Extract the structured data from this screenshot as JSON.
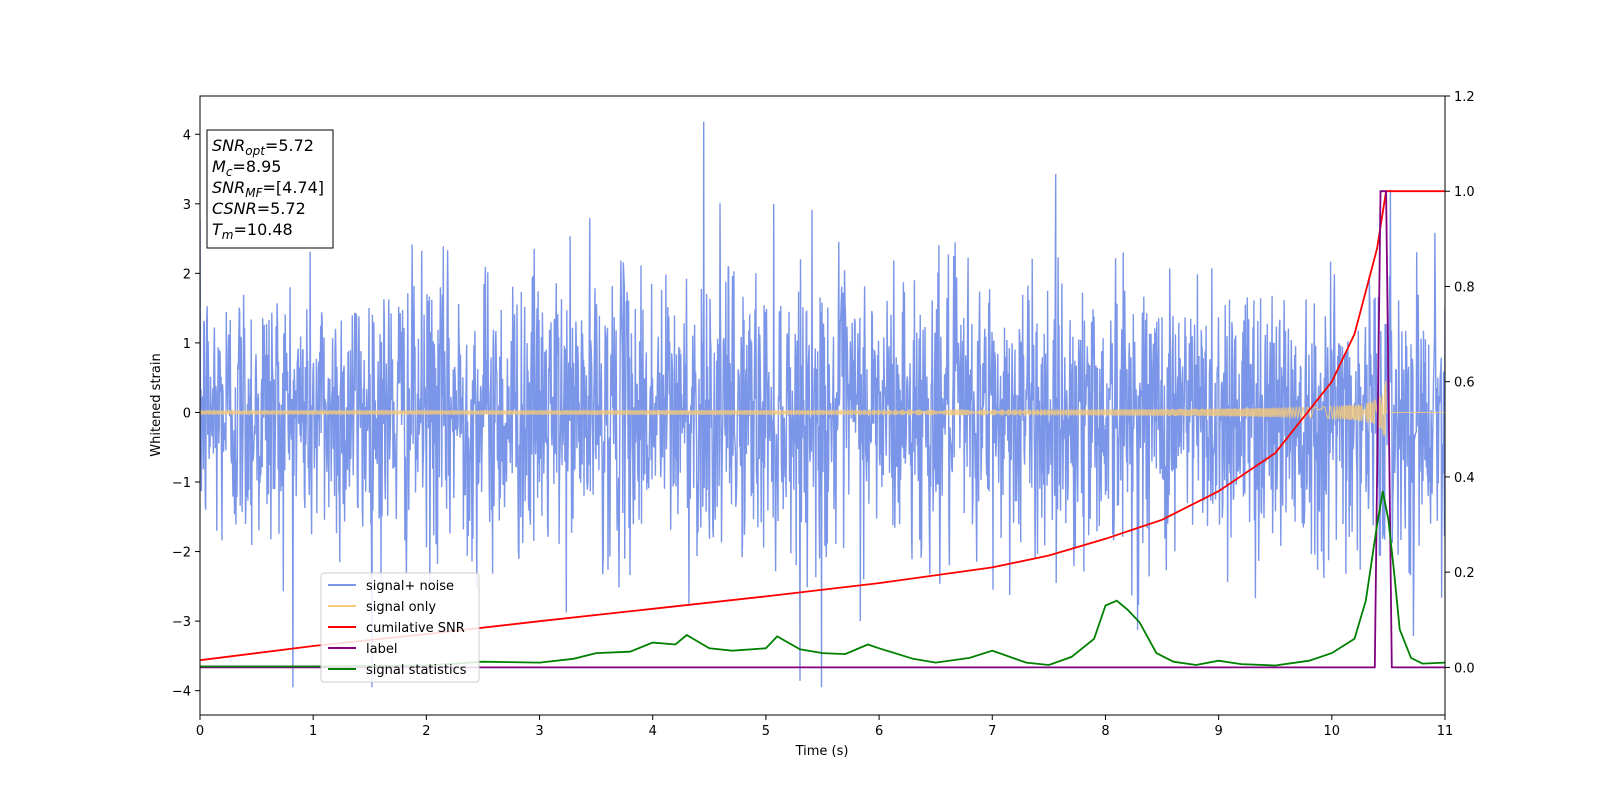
{
  "chart_data": {
    "type": "line",
    "title": "",
    "xlabel": "Time (s)",
    "ylabel": "Whitened strain",
    "xlim": [
      0,
      11
    ],
    "ylim": [
      -4.35,
      4.55
    ],
    "y2lim": [
      -0.1,
      1.2
    ],
    "x_ticks": [
      0,
      1,
      2,
      3,
      4,
      5,
      6,
      7,
      8,
      9,
      10,
      11
    ],
    "y_ticks": [
      -4,
      -3,
      -2,
      -1,
      0,
      1,
      2,
      3,
      4
    ],
    "y2_ticks": [
      "0.0",
      "0.2",
      "0.4",
      "0.6",
      "0.8",
      "1.0",
      "1.2"
    ],
    "grid": false,
    "legend_position": "lower-left",
    "info_box": {
      "lines": [
        {
          "base": "SNR",
          "sub": "opt",
          "value": "=5.72"
        },
        {
          "base": "M",
          "sub": "c",
          "value": "=8.95"
        },
        {
          "base": "SNR",
          "sub": "MF",
          "value": "=[4.74]"
        },
        {
          "base": "CSNR",
          "sub": "",
          "value": "=5.72"
        },
        {
          "base": "T",
          "sub": "m",
          "value": "=10.48"
        }
      ]
    },
    "series": [
      {
        "name": "signal+ noise",
        "color": "#7b96e8",
        "axis": "left",
        "kind": "noise",
        "envelope_std": 1.0,
        "peak_max": 4.18,
        "peak_min": -3.95
      },
      {
        "name": "signal only",
        "color": "#f5c97a",
        "axis": "left",
        "kind": "chirp",
        "amplitude_start": 0.02,
        "amplitude_end": 0.5,
        "merger_time": 10.48
      },
      {
        "name": "cumilative SNR",
        "color": "#ff0000",
        "axis": "right",
        "x": [
          0,
          1,
          2,
          3,
          4,
          5,
          6,
          7,
          7.5,
          8,
          8.5,
          9,
          9.5,
          10,
          10.2,
          10.4,
          10.48,
          10.5,
          11
        ],
        "values": [
          0.015,
          0.045,
          0.07,
          0.097,
          0.123,
          0.149,
          0.177,
          0.21,
          0.235,
          0.27,
          0.31,
          0.37,
          0.45,
          0.6,
          0.7,
          0.88,
          1.0,
          1.0,
          1.0
        ]
      },
      {
        "name": "label",
        "color": "#800080",
        "axis": "right",
        "x": [
          0,
          10.38,
          10.43,
          10.48,
          10.53,
          11
        ],
        "values": [
          0,
          0,
          1.0,
          1.0,
          0,
          0
        ]
      },
      {
        "name": "signal statistics",
        "color": "#008000",
        "axis": "right",
        "x": [
          0,
          1,
          2,
          2.5,
          3,
          3.3,
          3.5,
          3.8,
          4,
          4.2,
          4.3,
          4.5,
          4.7,
          5,
          5.1,
          5.3,
          5.5,
          5.7,
          5.9,
          6,
          6.3,
          6.5,
          6.8,
          7,
          7.3,
          7.5,
          7.7,
          7.9,
          8.0,
          8.1,
          8.2,
          8.3,
          8.45,
          8.6,
          8.8,
          9.0,
          9.2,
          9.5,
          9.8,
          10.0,
          10.2,
          10.3,
          10.4,
          10.45,
          10.5,
          10.55,
          10.6,
          10.7,
          10.8,
          11
        ],
        "values": [
          0.002,
          0.002,
          0.004,
          0.012,
          0.01,
          0.018,
          0.03,
          0.033,
          0.052,
          0.048,
          0.068,
          0.04,
          0.035,
          0.04,
          0.065,
          0.038,
          0.03,
          0.028,
          0.048,
          0.04,
          0.018,
          0.01,
          0.02,
          0.035,
          0.01,
          0.005,
          0.022,
          0.06,
          0.13,
          0.14,
          0.12,
          0.095,
          0.03,
          0.012,
          0.005,
          0.014,
          0.007,
          0.004,
          0.014,
          0.03,
          0.06,
          0.14,
          0.3,
          0.37,
          0.31,
          0.2,
          0.08,
          0.02,
          0.008,
          0.01
        ]
      }
    ]
  }
}
